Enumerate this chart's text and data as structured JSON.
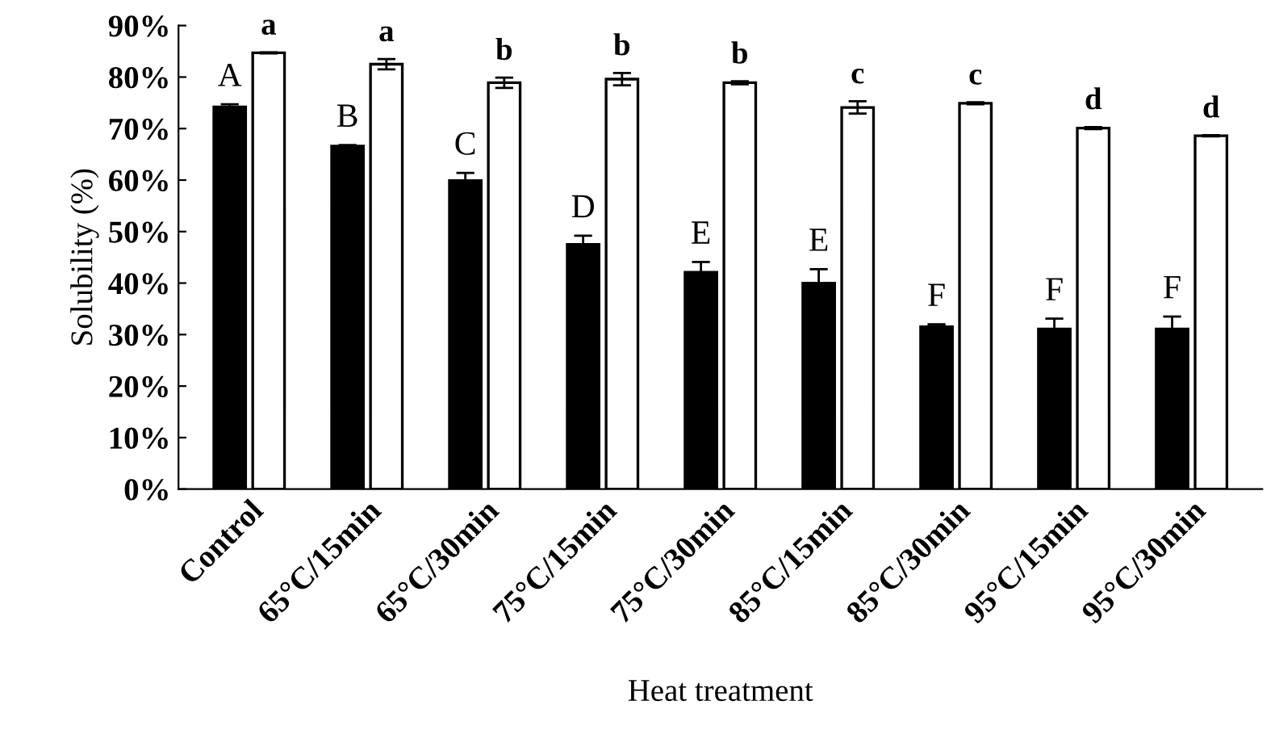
{
  "chart_data": {
    "type": "bar",
    "xlabel": "Heat treatment",
    "ylabel": "Solubility (%)",
    "categories": [
      "Control",
      "65°C/15min",
      "65°C/30min",
      "75°C/15min",
      "75°C/30min",
      "85°C/15min",
      "85°C/30min",
      "95°C/15min",
      "95°C/30min"
    ],
    "series": [
      {
        "color": "#000000",
        "values": [
          74.2,
          66.6,
          59.9,
          47.5,
          42.1,
          40.0,
          31.5,
          31.1,
          31.1
        ],
        "errors": [
          0.5,
          0.2,
          1.5,
          1.7,
          2.0,
          2.7,
          0.5,
          2.0,
          2.4
        ]
      },
      {
        "color": "#ffffff",
        "values": [
          84.7,
          82.5,
          78.9,
          79.6,
          78.9,
          74.1,
          74.9,
          70.1,
          68.6
        ],
        "errors": [
          0.1,
          1.0,
          1.0,
          1.2,
          0.3,
          1.2,
          0.2,
          0.2,
          0.1
        ]
      }
    ],
    "ylim": [
      0,
      90
    ],
    "yticks": [
      {
        "value": 0,
        "label": "0%"
      },
      {
        "value": 10,
        "label": "10%"
      },
      {
        "value": 20,
        "label": "20%"
      },
      {
        "value": 30,
        "label": "30%"
      },
      {
        "value": 40,
        "label": "40%"
      },
      {
        "value": 50,
        "label": "50%"
      },
      {
        "value": 60,
        "label": "60%"
      },
      {
        "value": 70,
        "label": "70%"
      },
      {
        "value": 80,
        "label": "80%"
      },
      {
        "value": 90,
        "label": "90%"
      }
    ],
    "annotations": [
      "A",
      "a",
      "B",
      "a",
      "C",
      "b",
      "D",
      "b",
      "E",
      "b",
      "E",
      "c",
      "F",
      "c",
      "F",
      "d",
      "F",
      "d"
    ],
    "grid": false,
    "legend": false
  }
}
